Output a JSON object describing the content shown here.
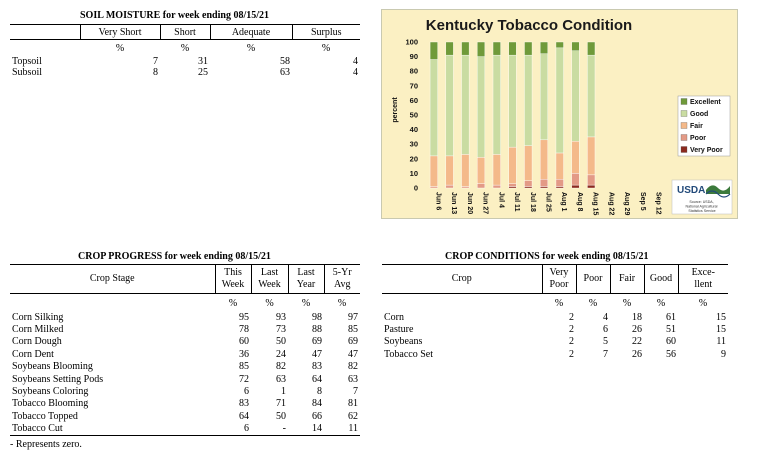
{
  "soil": {
    "title": "SOIL MOISTURE for week ending 08/15/21",
    "headers": [
      "",
      "Very Short",
      "Short",
      "Adequate",
      "Surplus"
    ],
    "units": [
      "",
      "%",
      "%",
      "%",
      "%"
    ],
    "rows": [
      [
        "Topsoil",
        "7",
        "31",
        "58",
        "4"
      ],
      [
        "Subsoil",
        "8",
        "25",
        "63",
        "4"
      ]
    ]
  },
  "progress": {
    "title": "CROP PROGRESS for week ending 08/15/21",
    "headers": [
      "Crop Stage",
      "This Week",
      "Last Week",
      "Last Year",
      "5-Yr Avg"
    ],
    "header_lines": [
      [
        "Crop Stage",
        ""
      ],
      [
        "This",
        "Week"
      ],
      [
        "Last",
        "Week"
      ],
      [
        "Last",
        "Year"
      ],
      [
        "5-Yr",
        "Avg"
      ]
    ],
    "units": [
      "",
      "%",
      "%",
      "%",
      "%"
    ],
    "rows": [
      [
        "Corn Silking",
        "95",
        "93",
        "98",
        "97"
      ],
      [
        "Corn Milked",
        "78",
        "73",
        "88",
        "85"
      ],
      [
        "Corn Dough",
        "60",
        "50",
        "69",
        "69"
      ],
      [
        "Corn Dent",
        "36",
        "24",
        "47",
        "47"
      ],
      [
        "Soybeans Blooming",
        "85",
        "82",
        "83",
        "82"
      ],
      [
        "Soybeans Setting Pods",
        "72",
        "63",
        "64",
        "63"
      ],
      [
        "Soybeans Coloring",
        "6",
        "1",
        "8",
        "7"
      ],
      [
        "Tobacco Blooming",
        "83",
        "71",
        "84",
        "81"
      ],
      [
        "Tobacco Topped",
        "64",
        "50",
        "66",
        "62"
      ],
      [
        "Tobacco Cut",
        "6",
        "-",
        "14",
        "11"
      ]
    ]
  },
  "footnote": "- Represents zero.",
  "conditions": {
    "title": "CROP CONDITIONS for week ending 08/15/21",
    "header_lines": [
      [
        "Crop",
        ""
      ],
      [
        "Very",
        "Poor"
      ],
      [
        "Poor",
        ""
      ],
      [
        "Fair",
        ""
      ],
      [
        "Good",
        ""
      ],
      [
        "Exce-",
        "llent"
      ]
    ],
    "units": [
      "",
      "%",
      "%",
      "%",
      "%",
      "%"
    ],
    "rows": [
      [
        "Corn",
        "2",
        "4",
        "18",
        "61",
        "15"
      ],
      [
        "Pasture",
        "2",
        "6",
        "26",
        "51",
        "15"
      ],
      [
        "Soybeans",
        "2",
        "5",
        "22",
        "60",
        "11"
      ],
      [
        "Tobacco Set",
        "2",
        "7",
        "26",
        "56",
        "9"
      ]
    ]
  },
  "chart_data": {
    "type": "bar",
    "stacked": true,
    "title": "Kentucky Tobacco Condition",
    "ylabel": "percent",
    "xlabel": "",
    "ylim": [
      0,
      100
    ],
    "yticks": [
      0,
      10,
      20,
      30,
      40,
      50,
      60,
      70,
      80,
      90,
      100
    ],
    "categories": [
      "Jun 6",
      "Jun 13",
      "Jun 20",
      "Jun 27",
      "Jul 4",
      "Jul 11",
      "Jul 18",
      "Jul 25",
      "Aug 1",
      "Aug 8",
      "Aug 15",
      "Aug 22",
      "Aug 29",
      "Sep 5",
      "Sep 12"
    ],
    "series": [
      {
        "name": "Very Poor",
        "color": "#8b2a1f",
        "values": [
          0,
          0,
          0,
          0,
          0,
          1,
          1,
          1,
          1,
          2,
          2,
          null,
          null,
          null,
          null
        ]
      },
      {
        "name": "Poor",
        "color": "#e39a86",
        "values": [
          1,
          2,
          1,
          3,
          2,
          2,
          4,
          5,
          5,
          8,
          7,
          null,
          null,
          null,
          null
        ]
      },
      {
        "name": "Fair",
        "color": "#f4b98a",
        "values": [
          21,
          20,
          22,
          18,
          21,
          25,
          24,
          27,
          18,
          22,
          26,
          null,
          null,
          null,
          null
        ]
      },
      {
        "name": "Good",
        "color": "#c9dca2",
        "values": [
          66,
          69,
          68,
          69,
          68,
          63,
          62,
          59,
          72,
          62,
          56,
          null,
          null,
          null,
          null
        ]
      },
      {
        "name": "Excellent",
        "color": "#6f9a3a",
        "values": [
          12,
          9,
          9,
          10,
          9,
          9,
          9,
          8,
          4,
          6,
          9,
          null,
          null,
          null,
          null
        ]
      }
    ],
    "legend": "right",
    "legend_order": [
      "Excellent",
      "Good",
      "Fair",
      "Poor",
      "Very Poor"
    ],
    "grid": false,
    "background": "#fbf0c3",
    "logo": {
      "name": "USDA",
      "caption": "Source: USDA, National Agricultural Statistics Service"
    }
  }
}
